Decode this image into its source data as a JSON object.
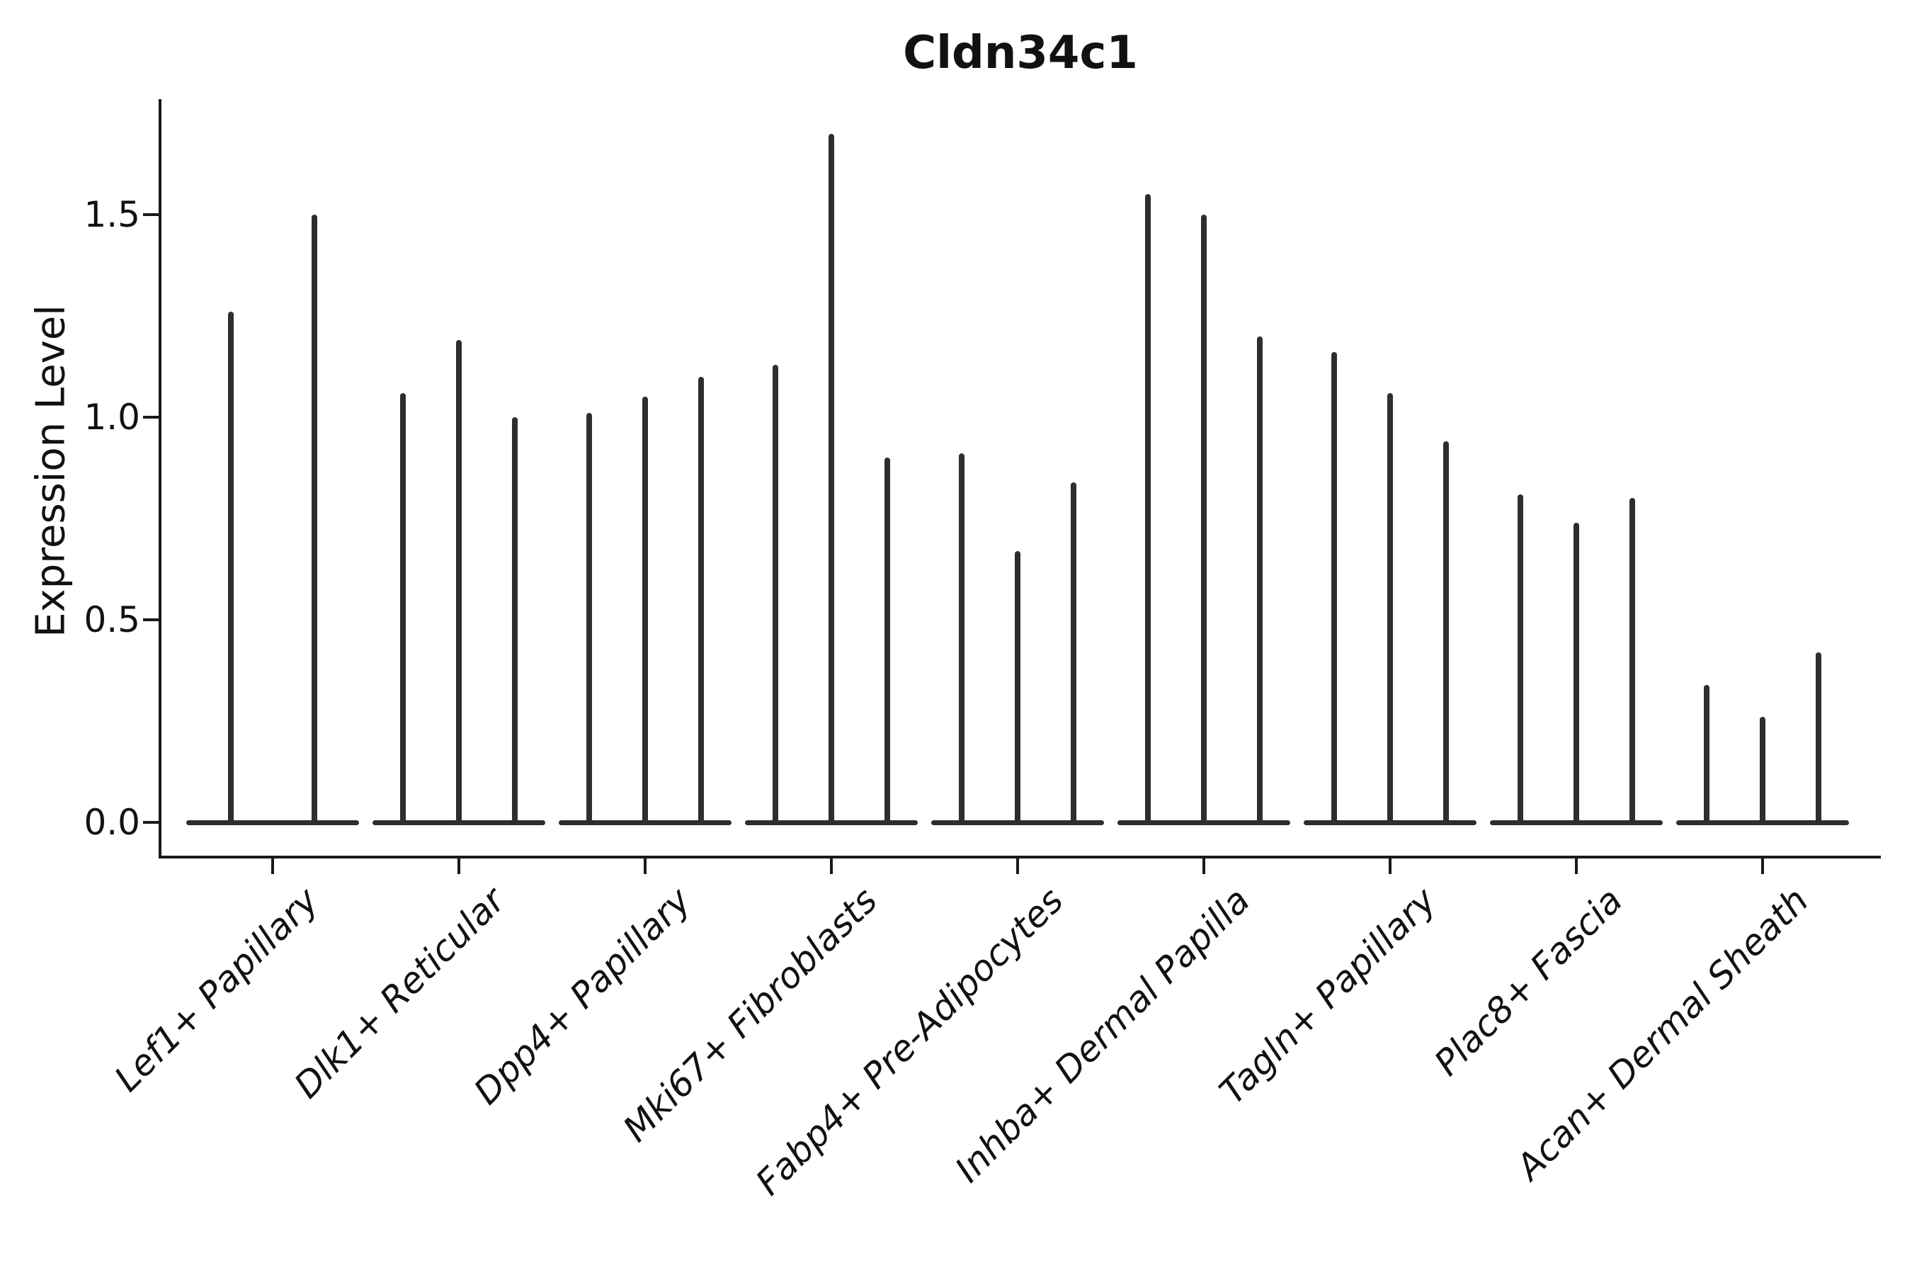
{
  "chart_data": {
    "type": "violin",
    "title": "Cldn34c1",
    "ylabel": "Expression Level",
    "xlabel": "",
    "yticks": [
      "0.0",
      "0.5",
      "1.0",
      "1.5"
    ],
    "ylim": [
      -0.02,
      1.79
    ],
    "grid": false,
    "legend_position": "none",
    "style": "thin spike violins with flat density mass at zero; open axes (left and bottom spines only); x labels rotated 45 degrees italic",
    "categories": [
      "Lef1+ Papillary",
      "Dlk1+ Reticular",
      "Dpp4+ Papillary",
      "Mki67+ Fibroblasts",
      "Fabp4+ Pre-Adipocytes",
      "Inhba+ Dermal Papilla",
      "Tagln+ Papillary",
      "Plac8+ Fascia",
      "Acan+ Dermal Sheath"
    ],
    "groups": [
      {
        "category": "Lef1+ Papillary",
        "violin_maxima": [
          1.26,
          1.5
        ]
      },
      {
        "category": "Dlk1+ Reticular",
        "violin_maxima": [
          1.06,
          1.19,
          1.0
        ]
      },
      {
        "category": "Dpp4+ Papillary",
        "violin_maxima": [
          1.01,
          1.05,
          1.1
        ]
      },
      {
        "category": "Mki67+ Fibroblasts",
        "violin_maxima": [
          1.13,
          1.7,
          0.9
        ]
      },
      {
        "category": "Fabp4+ Pre-Adipocytes",
        "violin_maxima": [
          0.91,
          0.67,
          0.84
        ]
      },
      {
        "category": "Inhba+ Dermal Papilla",
        "violin_maxima": [
          1.55,
          1.5,
          1.2
        ]
      },
      {
        "category": "Tagln+ Papillary",
        "violin_maxima": [
          1.16,
          1.06,
          0.94
        ]
      },
      {
        "category": "Plac8+ Fascia",
        "violin_maxima": [
          0.81,
          0.74,
          0.8
        ]
      },
      {
        "category": "Acan+ Dermal Sheath",
        "violin_maxima": [
          0.34,
          0.26,
          0.42
        ]
      }
    ],
    "colors": {
      "violin": "#2e2e2e",
      "axis": "#1a1a1a",
      "text": "#111111",
      "background": "#ffffff"
    }
  }
}
